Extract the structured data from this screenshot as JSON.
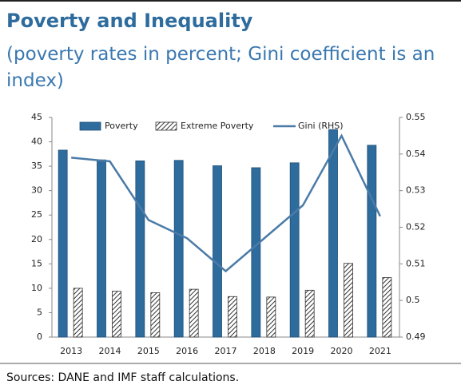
{
  "chart_data": {
    "type": "bar-line",
    "title": "Poverty and Inequality",
    "subtitle": "(poverty rates in percent; Gini coefficient is an index)",
    "source": "Sources: DANE and IMF staff calculations.",
    "categories": [
      "2013",
      "2014",
      "2015",
      "2016",
      "2017",
      "2018",
      "2019",
      "2020",
      "2021"
    ],
    "series": [
      {
        "name": "Poverty",
        "color": "#2e6c9e",
        "values": [
          38.3,
          36.3,
          36.1,
          36.2,
          35.1,
          34.7,
          35.7,
          42.5,
          39.3
        ]
      },
      {
        "name": "Extreme Poverty",
        "color": "#333333",
        "values": [
          10.0,
          9.4,
          9.1,
          9.8,
          8.3,
          8.2,
          9.6,
          15.1,
          12.2
        ]
      },
      {
        "name": "Gini (RHS)",
        "color": "#4a7ba7",
        "axis": "y2",
        "values": [
          0.539,
          0.538,
          0.522,
          0.517,
          0.508,
          0.517,
          0.526,
          0.545,
          0.523
        ]
      }
    ],
    "ylim": [
      0,
      45
    ],
    "yticks": [
      0,
      5,
      10,
      15,
      20,
      25,
      30,
      35,
      40,
      45
    ],
    "y2lim": [
      0.49,
      0.55
    ],
    "y2ticks": [
      0.49,
      0.5,
      0.51,
      0.52,
      0.53,
      0.54,
      0.55
    ],
    "legend": "top"
  }
}
